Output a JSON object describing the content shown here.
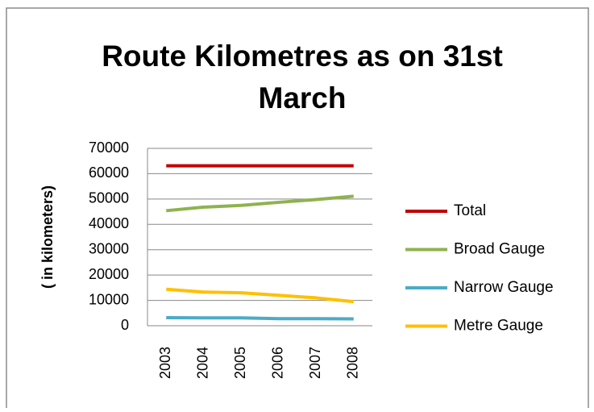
{
  "chart_data": {
    "type": "line",
    "title": "Route Kilometres as on 31st March",
    "title_lines": [
      "Route Kilometres as on 31st",
      "March"
    ],
    "y_label": "( in kilometers)",
    "categories": [
      "2003",
      "2004",
      "2005",
      "2006",
      "2007",
      "2008"
    ],
    "series": [
      {
        "name": "Total",
        "color": "#c00000",
        "values": [
          63100,
          63100,
          63100,
          63100,
          63100,
          63100
        ]
      },
      {
        "name": "Broad Gauge",
        "color": "#8fb24f",
        "values": [
          45400,
          46800,
          47500,
          48700,
          49800,
          51100
        ]
      },
      {
        "name": "Narrow Gauge",
        "color": "#4bacc6",
        "values": [
          3200,
          3100,
          3100,
          2800,
          2800,
          2700
        ]
      },
      {
        "name": "Metre Gauge",
        "color": "#ffc000",
        "values": [
          14400,
          13300,
          13000,
          12000,
          11000,
          9500
        ]
      }
    ],
    "ylim": [
      0,
      70000
    ],
    "yticks": [
      0,
      10000,
      20000,
      30000,
      40000,
      50000,
      60000,
      70000
    ],
    "grid": true,
    "legend": "right"
  }
}
